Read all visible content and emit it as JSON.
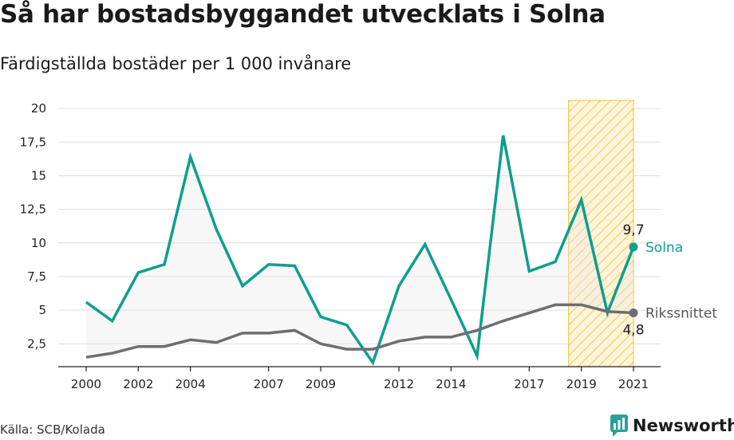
{
  "title": "Så har bostadsbyggandet utvecklats i Solna",
  "subtitle": "Färdigställda bostäder per 1 000 invånare",
  "source": "Källa: SCB/Kolada",
  "brand": "Newsworthy",
  "colors": {
    "solna": "#0d9e8f",
    "riket": "#6e6d73",
    "highlight": "#f6c744",
    "brand": "#2aa198"
  },
  "chart_data": {
    "type": "line",
    "x": [
      2000,
      2001,
      2002,
      2003,
      2004,
      2005,
      2006,
      2007,
      2008,
      2009,
      2010,
      2011,
      2012,
      2013,
      2014,
      2015,
      2016,
      2017,
      2018,
      2019,
      2020,
      2021
    ],
    "series": [
      {
        "name": "Solna",
        "values": [
          5.6,
          4.2,
          7.8,
          8.4,
          16.4,
          11.0,
          6.8,
          8.4,
          8.3,
          4.5,
          3.9,
          1.1,
          6.8,
          9.9,
          5.8,
          1.6,
          18.0,
          7.9,
          8.6,
          13.2,
          4.8,
          9.7
        ],
        "end_label": "9,7"
      },
      {
        "name": "Rikssnittet",
        "values": [
          1.5,
          1.8,
          2.3,
          2.3,
          2.8,
          2.6,
          3.3,
          3.3,
          3.5,
          2.5,
          2.1,
          2.1,
          2.7,
          3.0,
          3.0,
          3.5,
          4.2,
          4.8,
          5.4,
          5.4,
          4.9,
          4.8
        ],
        "end_label": "4,8"
      }
    ],
    "highlight_range": [
      2019,
      2021
    ],
    "ylim": [
      0.8,
      20.6
    ],
    "yticks": [
      2.5,
      5,
      7.5,
      10,
      12.5,
      15,
      17.5,
      20
    ],
    "ytick_labels": [
      "2,5",
      "5",
      "7,5",
      "10",
      "12,5",
      "15",
      "17,5",
      "20"
    ],
    "xtick_labels": [
      "2000",
      "2002",
      "2004",
      "2007",
      "2009",
      "2012",
      "2014",
      "2017",
      "2019",
      "2021"
    ],
    "grid": true
  }
}
